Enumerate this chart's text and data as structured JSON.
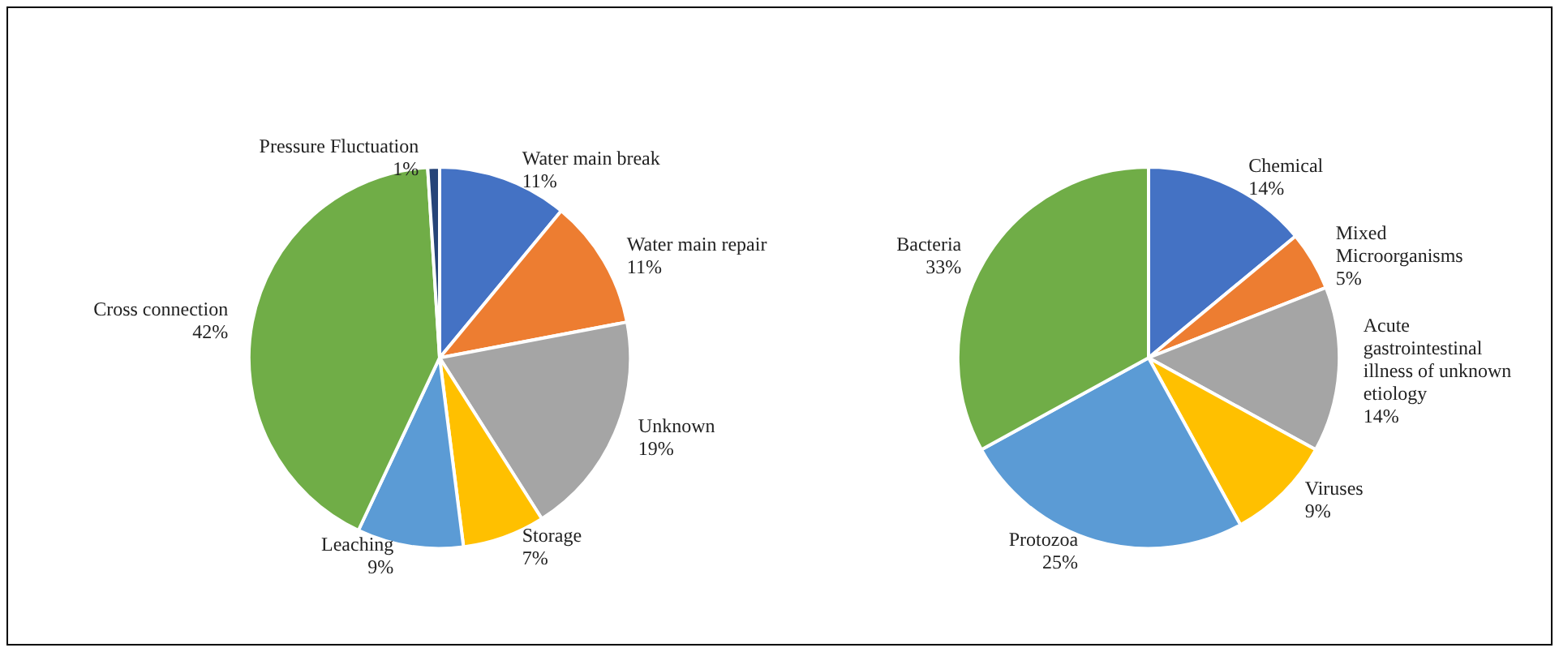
{
  "chart_data": [
    {
      "type": "pie",
      "categories": [
        "Water main break",
        "Water main repair",
        "Unknown",
        "Storage",
        "Leaching",
        "Cross connection",
        "Pressure Fluctuation"
      ],
      "values": [
        11,
        11,
        19,
        7,
        9,
        42,
        1
      ],
      "value_labels": [
        "11%",
        "11%",
        "19%",
        "7%",
        "9%",
        "42%",
        "1%"
      ],
      "colors": [
        "#4472c4",
        "#ed7d31",
        "#a5a5a5",
        "#ffc000",
        "#5b9bd5",
        "#70ad47",
        "#264478"
      ],
      "legend": false
    },
    {
      "type": "pie",
      "categories": [
        "Chemical",
        "Mixed Microorganisms",
        "Acute gastrointestinal illness of unknown etiology",
        "Viruses",
        "Protozoa",
        "Bacteria"
      ],
      "values": [
        14,
        5,
        14,
        9,
        25,
        33
      ],
      "value_labels": [
        "14%",
        "5%",
        "14%",
        "9%",
        "25%",
        "33%"
      ],
      "colors": [
        "#4472c4",
        "#ed7d31",
        "#a5a5a5",
        "#ffc000",
        "#5b9bd5",
        "#70ad47"
      ],
      "legend": false
    }
  ]
}
